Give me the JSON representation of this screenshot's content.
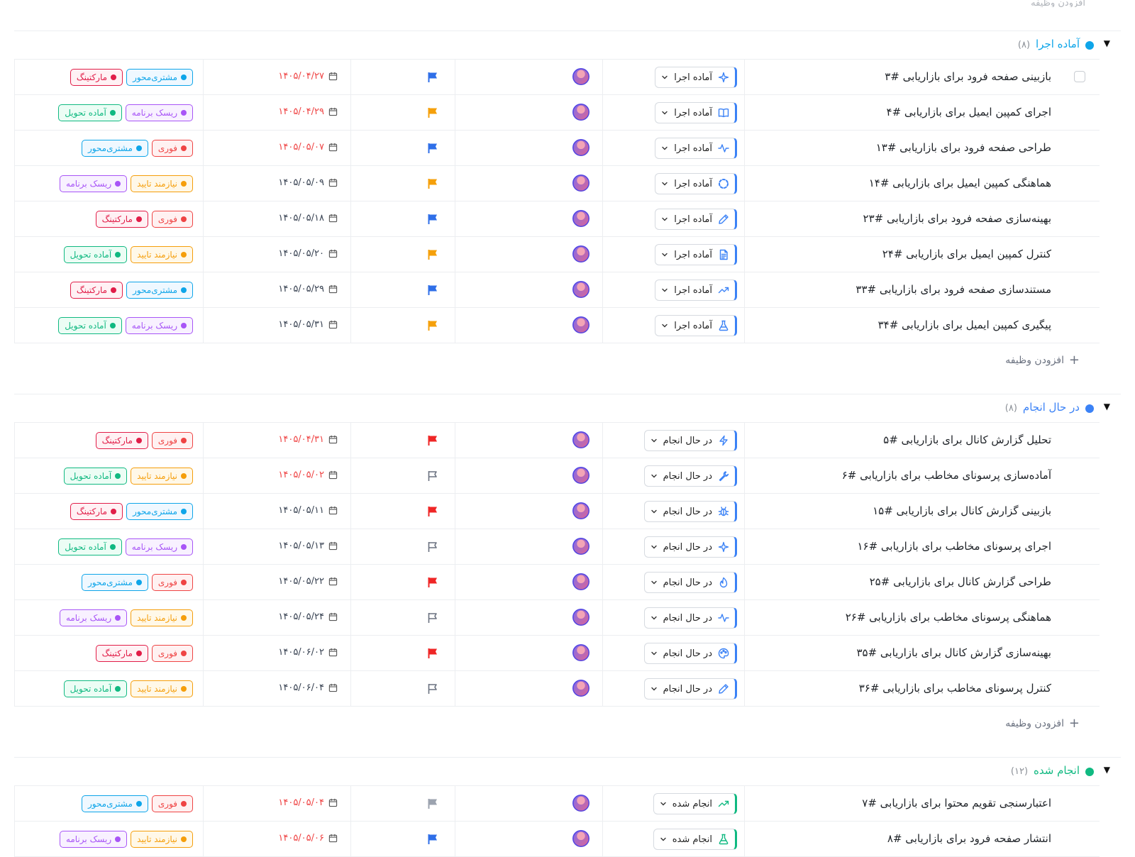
{
  "header": {
    "partial_text": "افزودن وظیفه"
  },
  "tag_styles": {
    "مارکتینگ": {
      "color": "#e11d48",
      "bg": "#fff1f4"
    },
    "مشتری‌محور": {
      "color": "#0ea5e9",
      "bg": "#eff8ff"
    },
    "ریسک برنامه": {
      "color": "#a855f7",
      "bg": "#f8f1ff"
    },
    "آماده تحویل": {
      "color": "#10b981",
      "bg": "#ecfdf5"
    },
    "فوری": {
      "color": "#ef4444",
      "bg": "#fff1f1"
    },
    "نیازمند تایید": {
      "color": "#f59e0b",
      "bg": "#fff8e8"
    }
  },
  "flag_colors": {
    "blue": "#2f6fe8",
    "orange": "#f5a00b",
    "red": "#ef2626",
    "gray": "#9ca3af"
  },
  "groups": [
    {
      "name": "آماده اجرا",
      "count": "(۸)",
      "dot_color": "#0ea5e9",
      "name_color": "#0ea5e9",
      "status_accent": "#3b82f6",
      "add_label": "افزودن وظیفه",
      "rows": [
        {
          "title": "بازبینی صفحه فرود برای بازاریابی #۳",
          "status": "آماده اجرا",
          "icon": "sparkle-icon",
          "flag": "blue",
          "date": "۱۴۰۵/۰۴/۲۷",
          "date_color": "#ef4444",
          "tags": [
            "مشتری‌محور",
            "مارکتینگ"
          ],
          "checkbox": true
        },
        {
          "title": "اجرای کمپین ایمیل برای بازاریابی #۴",
          "status": "آماده اجرا",
          "icon": "book-icon",
          "flag": "orange",
          "date": "۱۴۰۵/۰۴/۲۹",
          "date_color": "#ef4444",
          "tags": [
            "ریسک برنامه",
            "آماده تحویل"
          ]
        },
        {
          "title": "طراحی صفحه فرود برای بازاریابی #۱۳",
          "status": "آماده اجرا",
          "icon": "pulse-icon",
          "flag": "blue",
          "date": "۱۴۰۵/۰۵/۰۷",
          "date_color": "#ef4444",
          "tags": [
            "فوری",
            "مشتری‌محور"
          ]
        },
        {
          "title": "هماهنگی کمپین ایمیل برای بازاریابی #۱۴",
          "status": "آماده اجرا",
          "icon": "loader-icon",
          "flag": "orange",
          "date": "۱۴۰۵/۰۵/۰۹",
          "date_color": "#374151",
          "tags": [
            "نیازمند تایید",
            "ریسک برنامه"
          ]
        },
        {
          "title": "بهینه‌سازی صفحه فرود برای بازاریابی #۲۳",
          "status": "آماده اجرا",
          "icon": "pencil-icon",
          "flag": "blue",
          "date": "۱۴۰۵/۰۵/۱۸",
          "date_color": "#374151",
          "tags": [
            "فوری",
            "مارکتینگ"
          ]
        },
        {
          "title": "کنترل کمپین ایمیل برای بازاریابی #۲۴",
          "status": "آماده اجرا",
          "icon": "document-icon",
          "flag": "orange",
          "date": "۱۴۰۵/۰۵/۲۰",
          "date_color": "#374151",
          "tags": [
            "نیازمند تایید",
            "آماده تحویل"
          ]
        },
        {
          "title": "مستندسازی صفحه فرود برای بازاریابی #۳۳",
          "status": "آماده اجرا",
          "icon": "trend-icon",
          "flag": "blue",
          "date": "۱۴۰۵/۰۵/۲۹",
          "date_color": "#374151",
          "tags": [
            "مشتری‌محور",
            "مارکتینگ"
          ]
        },
        {
          "title": "پیگیری کمپین ایمیل برای بازاریابی #۳۴",
          "status": "آماده اجرا",
          "icon": "flask-icon",
          "flag": "orange",
          "date": "۱۴۰۵/۰۵/۳۱",
          "date_color": "#374151",
          "tags": [
            "ریسک برنامه",
            "آماده تحویل"
          ]
        }
      ]
    },
    {
      "name": "در حال انجام",
      "count": "(۸)",
      "dot_color": "#3b82f6",
      "name_color": "#3b82f6",
      "status_accent": "#3b82f6",
      "add_label": "افزودن وظیفه",
      "rows": [
        {
          "title": "تحلیل گزارش کانال برای بازاریابی #۵",
          "status": "در حال انجام",
          "icon": "bolt-icon",
          "flag": "red",
          "date": "۱۴۰۵/۰۴/۳۱",
          "date_color": "#ef4444",
          "tags": [
            "فوری",
            "مارکتینگ"
          ]
        },
        {
          "title": "آماده‌سازی پرسونای مخاطب برای بازاریابی #۶",
          "status": "در حال انجام",
          "icon": "wrench-icon",
          "flag": "gray-outline",
          "date": "۱۴۰۵/۰۵/۰۲",
          "date_color": "#ef4444",
          "tags": [
            "نیازمند تایید",
            "آماده تحویل"
          ]
        },
        {
          "title": "بازبینی گزارش کانال برای بازاریابی #۱۵",
          "status": "در حال انجام",
          "icon": "bug-icon",
          "flag": "red",
          "date": "۱۴۰۵/۰۵/۱۱",
          "date_color": "#374151",
          "tags": [
            "مشتری‌محور",
            "مارکتینگ"
          ]
        },
        {
          "title": "اجرای پرسونای مخاطب برای بازاریابی #۱۶",
          "status": "در حال انجام",
          "icon": "sparkle-icon",
          "flag": "gray-outline",
          "date": "۱۴۰۵/۰۵/۱۳",
          "date_color": "#374151",
          "tags": [
            "ریسک برنامه",
            "آماده تحویل"
          ]
        },
        {
          "title": "طراحی گزارش کانال برای بازاریابی #۲۵",
          "status": "در حال انجام",
          "icon": "fire-icon",
          "flag": "red",
          "date": "۱۴۰۵/۰۵/۲۲",
          "date_color": "#374151",
          "tags": [
            "فوری",
            "مشتری‌محور"
          ]
        },
        {
          "title": "هماهنگی پرسونای مخاطب برای بازاریابی #۲۶",
          "status": "در حال انجام",
          "icon": "pulse-icon",
          "flag": "gray-outline",
          "date": "۱۴۰۵/۰۵/۲۴",
          "date_color": "#374151",
          "tags": [
            "نیازمند تایید",
            "ریسک برنامه"
          ]
        },
        {
          "title": "بهینه‌سازی گزارش کانال برای بازاریابی #۳۵",
          "status": "در حال انجام",
          "icon": "palette-icon",
          "flag": "red",
          "date": "۱۴۰۵/۰۶/۰۲",
          "date_color": "#374151",
          "tags": [
            "فوری",
            "مارکتینگ"
          ]
        },
        {
          "title": "کنترل پرسونای مخاطب برای بازاریابی #۳۶",
          "status": "در حال انجام",
          "icon": "pencil-icon",
          "flag": "gray-outline",
          "date": "۱۴۰۵/۰۶/۰۴",
          "date_color": "#374151",
          "tags": [
            "نیازمند تایید",
            "آماده تحویل"
          ]
        }
      ]
    },
    {
      "name": "انجام شده",
      "count": "(۱۲)",
      "dot_color": "#10b981",
      "name_color": "#10b981",
      "status_accent": "#10b981",
      "add_label": "",
      "rows": [
        {
          "title": "اعتبارسنجی تقویم محتوا برای بازاریابی #۷",
          "status": "انجام شده",
          "icon": "trend-icon",
          "flag": "gray",
          "date": "۱۴۰۵/۰۵/۰۴",
          "date_color": "#ef4444",
          "tags": [
            "فوری",
            "مشتری‌محور"
          ]
        },
        {
          "title": "انتشار صفحه فرود برای بازاریابی #۸",
          "status": "انجام شده",
          "icon": "flask-icon",
          "flag": "blue",
          "date": "۱۴۰۵/۰۵/۰۶",
          "date_color": "#ef4444",
          "tags": [
            "نیازمند تایید",
            "ریسک برنامه"
          ]
        }
      ]
    }
  ]
}
